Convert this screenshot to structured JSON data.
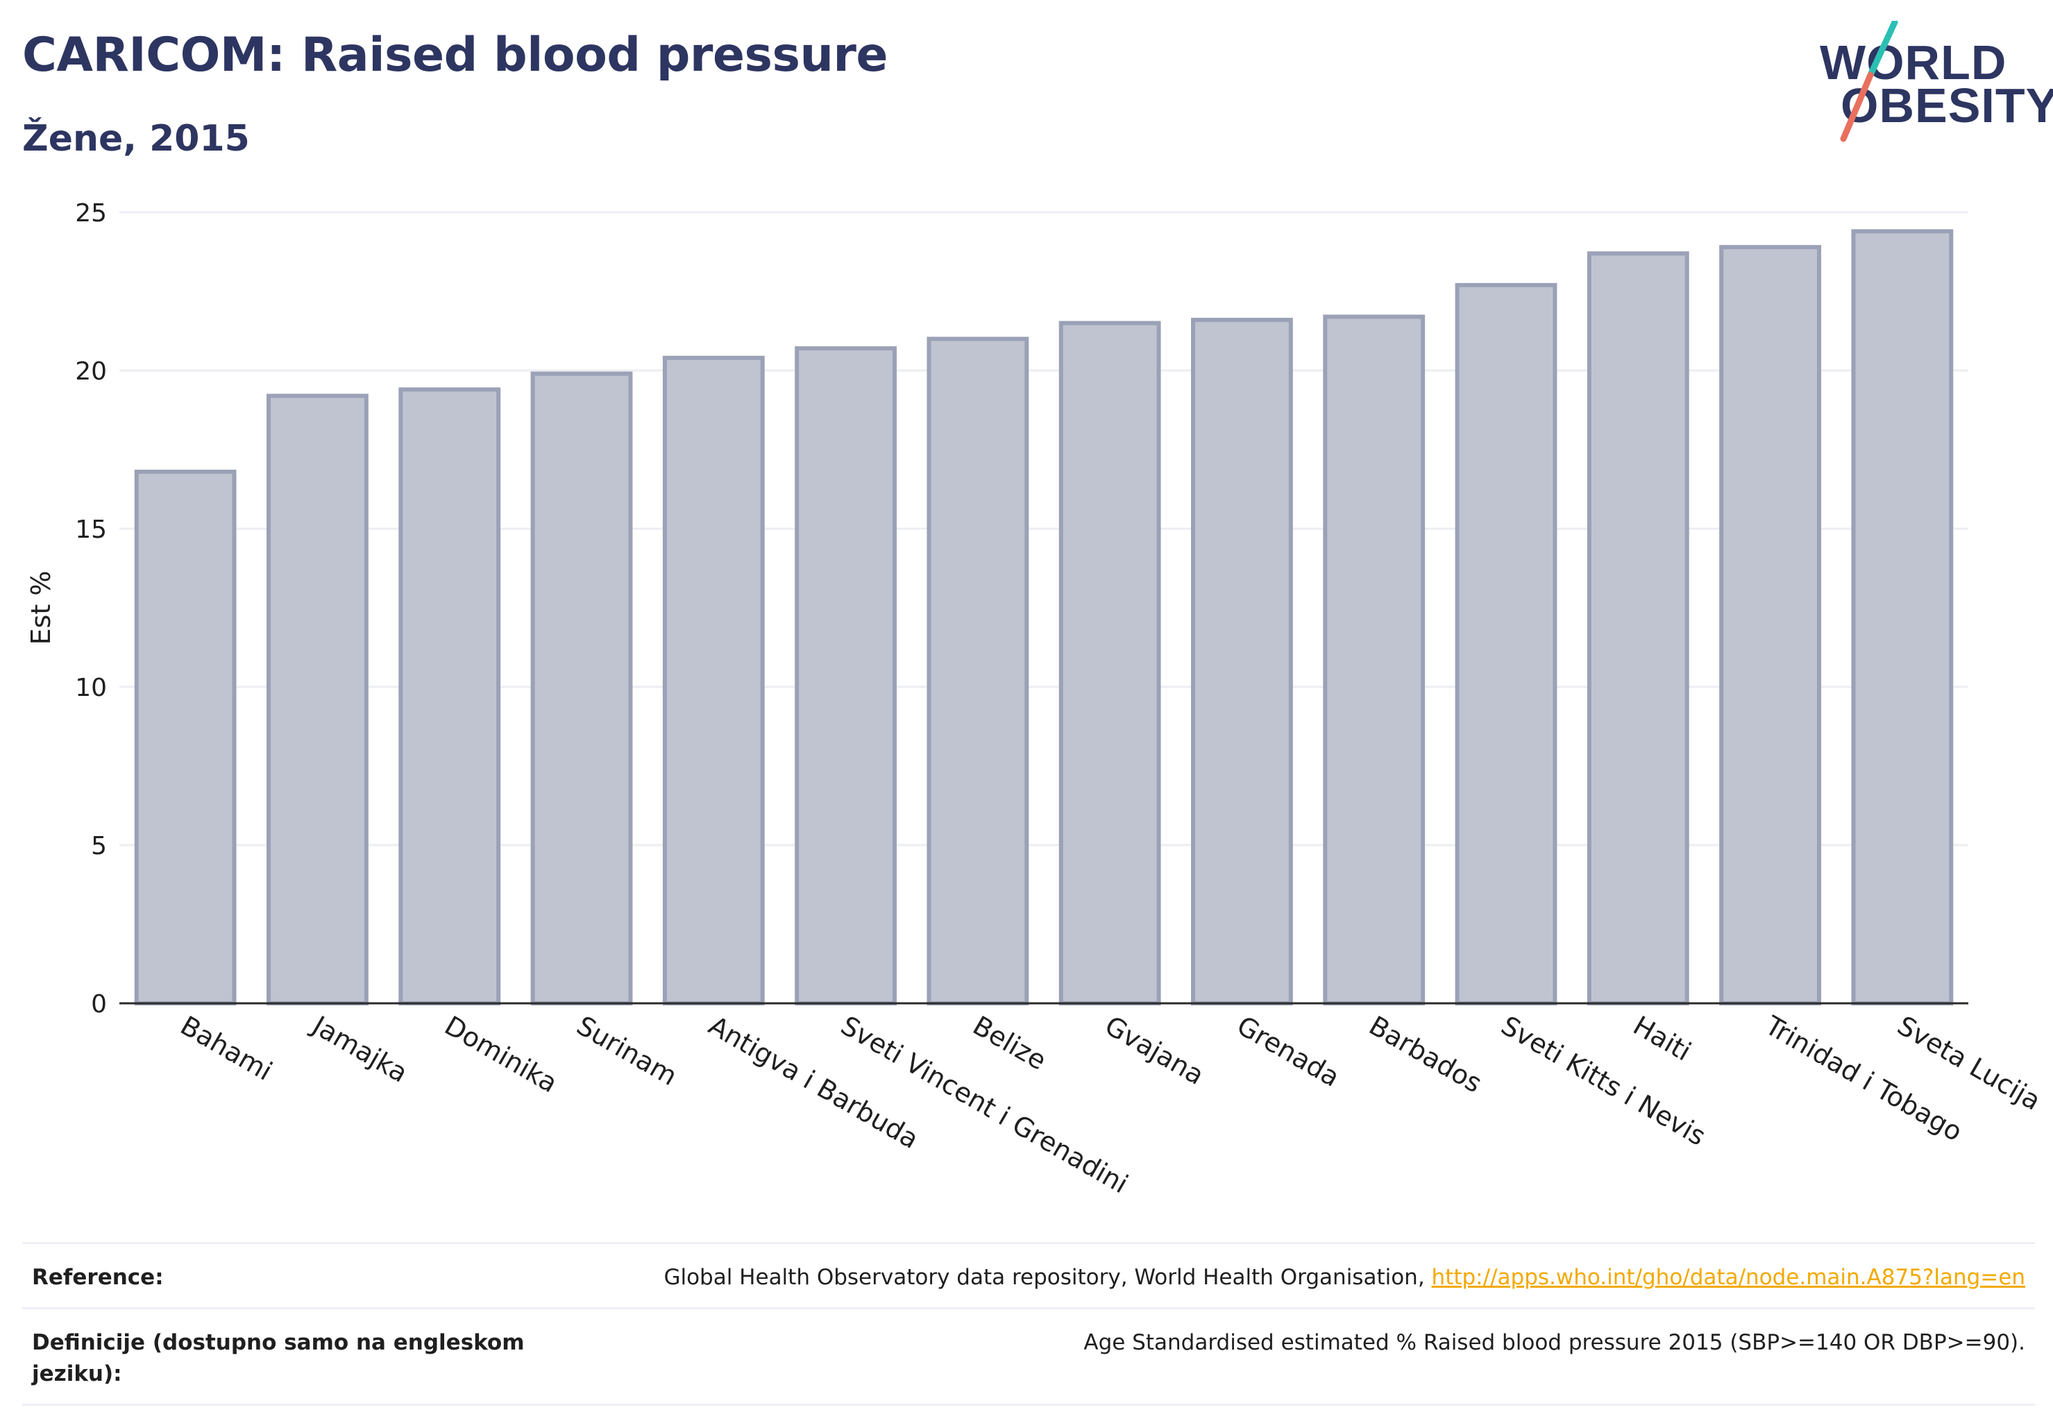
{
  "header": {
    "title": "CARICOM: Raised blood pressure",
    "subtitle": "Žene, 2015"
  },
  "logo": {
    "line1": "WORLD",
    "line2": "OBESITY"
  },
  "chart_data": {
    "type": "bar",
    "categories": [
      "Bahami",
      "Jamajka",
      "Dominika",
      "Surinam",
      "Antigva i Barbuda",
      "Sveti Vincent i Grenadini",
      "Belize",
      "Gvajana",
      "Grenada",
      "Barbados",
      "Sveti Kitts i Nevis",
      "Haiti",
      "Trinidad i Tobago",
      "Sveta Lucija"
    ],
    "values": [
      16.8,
      19.2,
      19.4,
      19.9,
      20.4,
      20.7,
      21.0,
      21.5,
      21.6,
      21.7,
      22.7,
      23.7,
      23.9,
      24.4
    ],
    "title": "CARICOM: Raised blood pressure",
    "xlabel": "",
    "ylabel": "Est %",
    "ylim": [
      0,
      25
    ],
    "yticks": [
      0,
      5,
      10,
      15,
      20,
      25
    ],
    "grid": true,
    "legend": "none",
    "colors": {
      "bar_fill": "#c0c4d0",
      "bar_stroke": "#9ba1b6",
      "grid": "#eceef2",
      "axis": "#2b2b2b"
    }
  },
  "footer": {
    "reference_label": "Reference:",
    "reference_text": "Global Health Observatory data repository, World Health Organisation,",
    "reference_link": "http://apps.who.int/gho/data/node.main.A875?lang=en",
    "definition_label": "Definicije (dostupno samo na engleskom jeziku):",
    "definition_text": "Age Standardised estimated % Raised blood pressure 2015 (SBP>=140 OR DBP>=90)."
  }
}
